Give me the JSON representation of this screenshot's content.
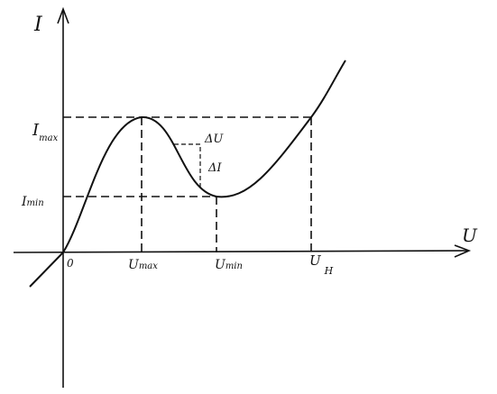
{
  "axes": {
    "y_label": "I",
    "x_label": "U",
    "origin": "0"
  },
  "labels": {
    "i_max": {
      "main": "I",
      "sub": "max"
    },
    "i_min": {
      "main": "I",
      "sub": "min"
    },
    "u_max": {
      "main": "U",
      "sub": "max"
    },
    "u_min": {
      "main": "U",
      "sub": "min"
    },
    "u_h": {
      "main": "U",
      "sub": "H"
    },
    "delta_u": "ΔU",
    "delta_i": "ΔI"
  }
}
